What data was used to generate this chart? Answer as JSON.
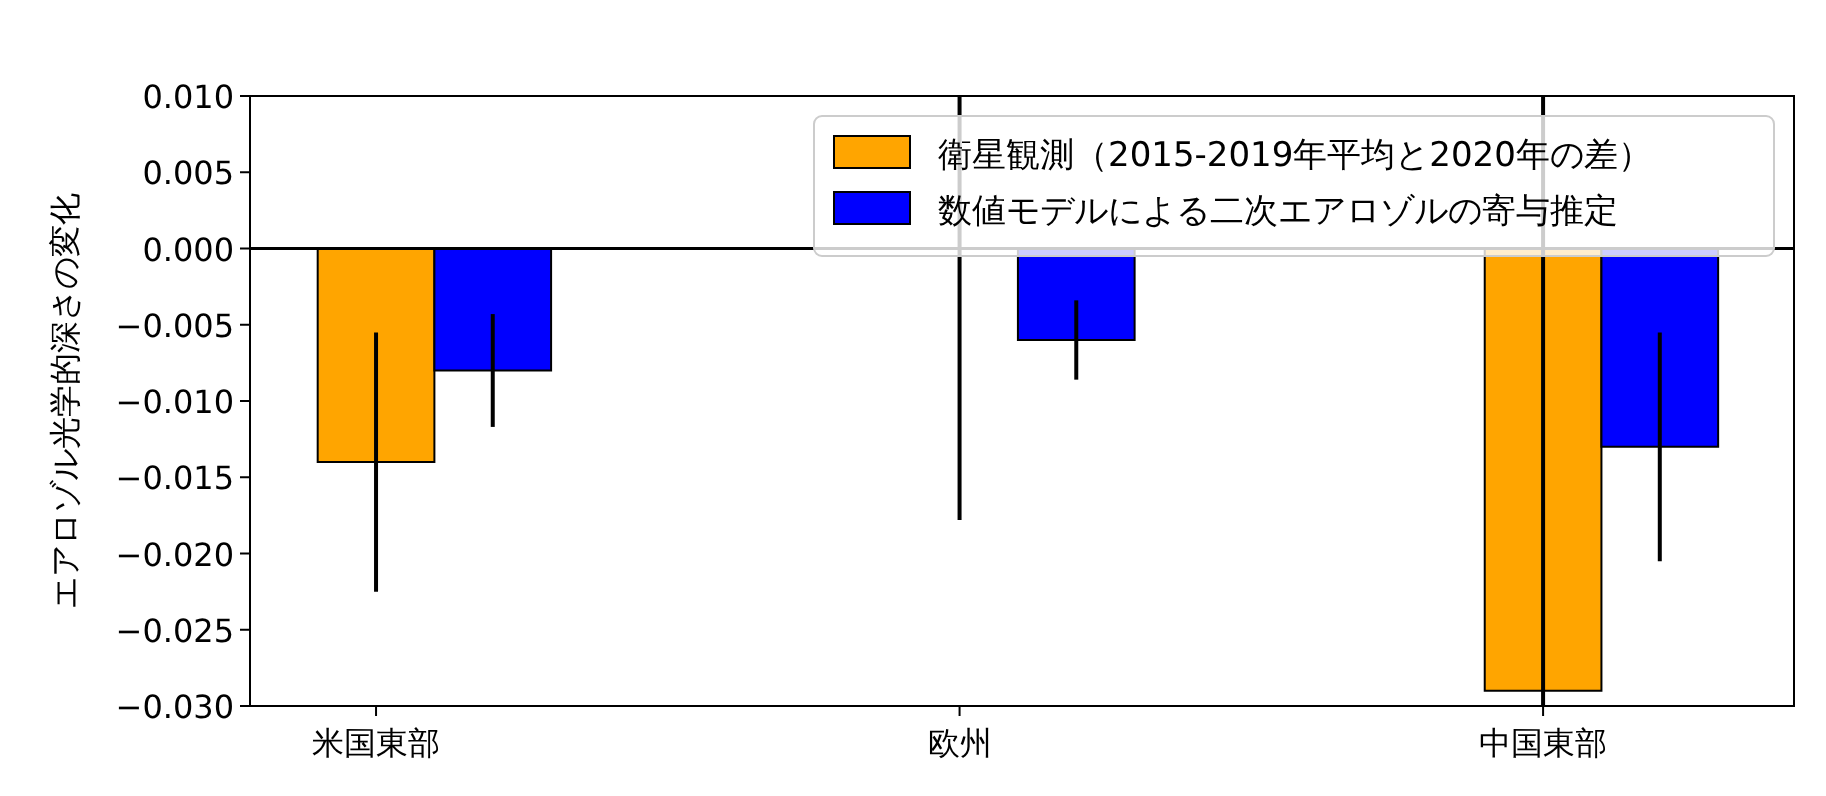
{
  "chart_data": {
    "type": "bar",
    "ylabel": "エアロゾル光学的深さの変化",
    "categories": [
      "米国東部",
      "欧州",
      "中国東部"
    ],
    "series": [
      {
        "name": "衛星観測（2015-2019年平均と2020年の差）",
        "color": "#ffa500",
        "values": [
          -0.014,
          0,
          -0.029
        ],
        "errors": [
          0.0085,
          [
            -0.0178,
            0.01
          ],
          [
            -0.03,
            0.01
          ]
        ]
      },
      {
        "name": "数値モデルによる二次エアロゾルの寄与推定",
        "color": "#0000ff",
        "values": [
          -0.008,
          -0.006,
          -0.013
        ],
        "errors": [
          0.0037,
          0.0026,
          0.0075
        ]
      }
    ],
    "ylim": [
      -0.03,
      0.01
    ],
    "yticks": [
      {
        "value": -0.03,
        "label": "−0.030"
      },
      {
        "value": -0.025,
        "label": "−0.025"
      },
      {
        "value": -0.02,
        "label": "−0.020"
      },
      {
        "value": -0.015,
        "label": "−0.015"
      },
      {
        "value": -0.01,
        "label": "−0.010"
      },
      {
        "value": -0.005,
        "label": "−0.005"
      },
      {
        "value": 0,
        "label": "0.000"
      },
      {
        "value": 0.005,
        "label": "0.005"
      },
      {
        "value": 0.01,
        "label": "0.010"
      }
    ],
    "ref_lines": [
      {
        "axis": "y",
        "value": 0,
        "color": "#000000"
      }
    ],
    "legend": "top right",
    "grid": false
  }
}
